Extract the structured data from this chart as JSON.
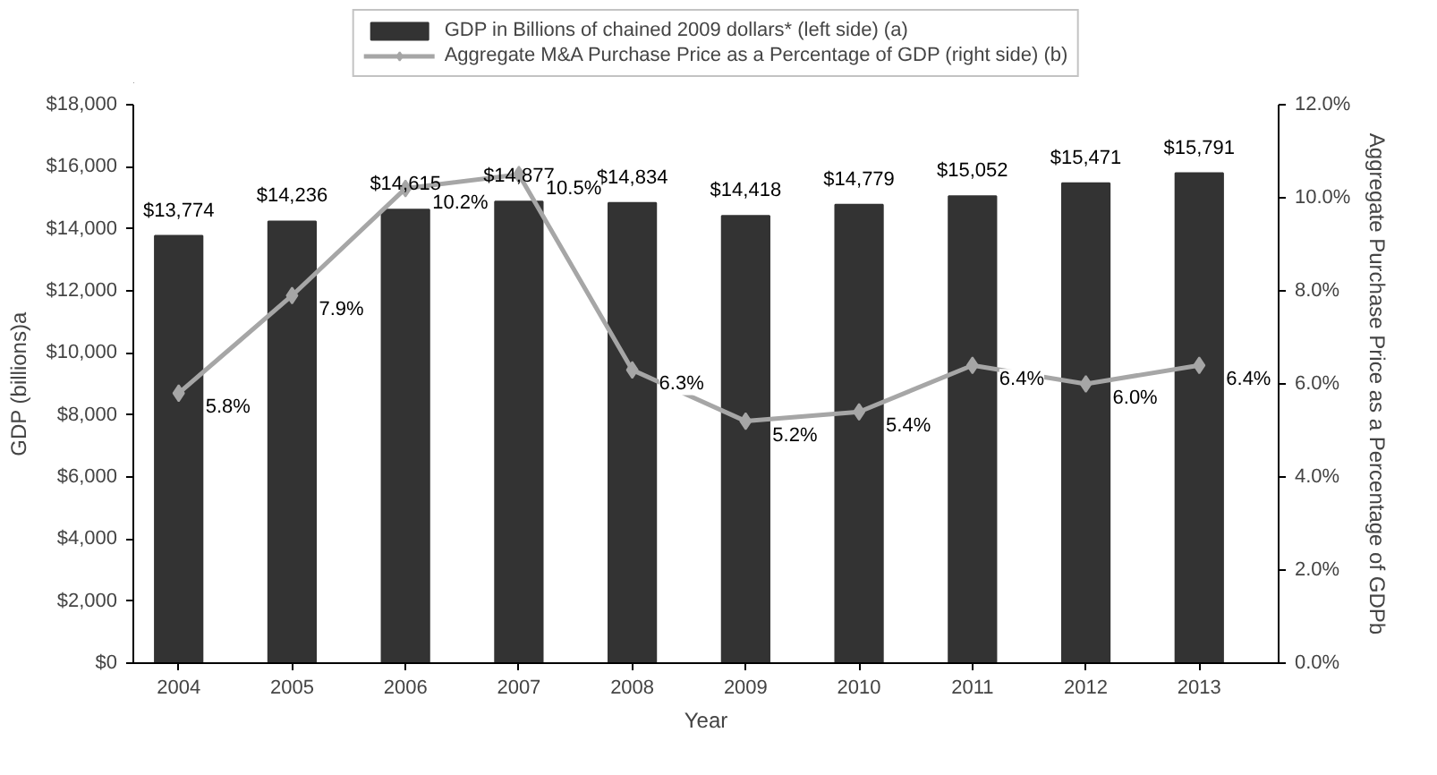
{
  "chart_data": {
    "type": "bar",
    "xlabel": "Year",
    "ylabel": "GDP (billions)a",
    "y2label": "Aggregate Purchase Price as a Percentage of GDPb",
    "categories": [
      "2004",
      "2005",
      "2006",
      "2007",
      "2008",
      "2009",
      "2010",
      "2011",
      "2012",
      "2013"
    ],
    "series": [
      {
        "name": "GDP in Billions of chained 2009 dollars* (left side) (a)",
        "color": "#333333",
        "values": [
          13774,
          14236,
          14615,
          14877,
          14834,
          14418,
          14779,
          15052,
          15471,
          15791
        ],
        "value_labels": [
          "$13,774",
          "$14,236",
          "$14,615",
          "$14,877",
          "$14,834",
          "$14,418",
          "$14,779",
          "$15,052",
          "$15,471",
          "$15,791"
        ]
      },
      {
        "name": "Aggregate M&A Purchase Price as a Percentage of GDP (right side) (b)",
        "type": "line",
        "axis": "y2",
        "color": "#a6a6a6",
        "values": [
          5.8,
          7.9,
          10.2,
          10.5,
          6.3,
          5.2,
          5.4,
          6.4,
          6.0,
          6.4
        ],
        "value_labels": [
          "5.8%",
          "7.9%",
          "10.2%",
          "10.5%",
          "6.3%",
          "5.2%",
          "5.4%",
          "6.4%",
          "6.0%",
          "6.4%"
        ]
      }
    ],
    "ylim": [
      0,
      18000
    ],
    "yticks": [
      {
        "value": 0,
        "label": "$0"
      },
      {
        "value": 2000,
        "label": "$2,000"
      },
      {
        "value": 4000,
        "label": "$4,000"
      },
      {
        "value": 6000,
        "label": "$6,000"
      },
      {
        "value": 8000,
        "label": "$8,000"
      },
      {
        "value": 10000,
        "label": "$10,000"
      },
      {
        "value": 12000,
        "label": "$12,000"
      },
      {
        "value": 14000,
        "label": "$14,000"
      },
      {
        "value": 16000,
        "label": "$16,000"
      },
      {
        "value": 18000,
        "label": "$18,000"
      }
    ],
    "y2lim": [
      0,
      12
    ],
    "y2ticks": [
      {
        "value": 0,
        "label": "0.0%"
      },
      {
        "value": 2,
        "label": "2.0%"
      },
      {
        "value": 4,
        "label": "4.0%"
      },
      {
        "value": 6,
        "label": "6.0%"
      },
      {
        "value": 8,
        "label": "8.0%"
      },
      {
        "value": 10,
        "label": "10.0%"
      },
      {
        "value": 12,
        "label": "12.0%"
      }
    ],
    "marker": "diamond",
    "legend": "top"
  }
}
